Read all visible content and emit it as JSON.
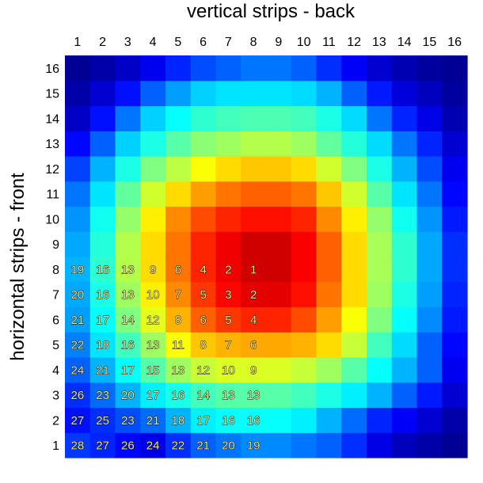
{
  "chart_data": {
    "type": "heatmap",
    "title": "",
    "xlabel": "vertical strips - back",
    "ylabel": "horizontal strips - front",
    "x_categories": [
      "1",
      "2",
      "3",
      "4",
      "5",
      "6",
      "7",
      "8",
      "9",
      "10",
      "11",
      "12",
      "13",
      "14",
      "15",
      "16"
    ],
    "y_categories": [
      "1",
      "2",
      "3",
      "4",
      "5",
      "6",
      "7",
      "8",
      "9",
      "10",
      "11",
      "12",
      "13",
      "14",
      "15",
      "16"
    ],
    "colormap": "jet",
    "z_range": [
      0,
      1
    ],
    "z_rows_bottom_to_top": [
      [
        0.18,
        0.16,
        0.13,
        0.1,
        0.17,
        0.22,
        0.24,
        0.26,
        0.26,
        0.24,
        0.22,
        0.17,
        0.1,
        0.06,
        0.04,
        0.02
      ],
      [
        0.14,
        0.17,
        0.2,
        0.23,
        0.3,
        0.36,
        0.38,
        0.38,
        0.38,
        0.36,
        0.3,
        0.23,
        0.16,
        0.12,
        0.08,
        0.04
      ],
      [
        0.17,
        0.23,
        0.3,
        0.36,
        0.4,
        0.44,
        0.46,
        0.46,
        0.46,
        0.44,
        0.4,
        0.36,
        0.3,
        0.22,
        0.15,
        0.08
      ],
      [
        0.22,
        0.3,
        0.38,
        0.46,
        0.53,
        0.57,
        0.59,
        0.59,
        0.59,
        0.57,
        0.53,
        0.46,
        0.38,
        0.3,
        0.22,
        0.11
      ],
      [
        0.25,
        0.35,
        0.44,
        0.53,
        0.62,
        0.68,
        0.7,
        0.71,
        0.71,
        0.7,
        0.66,
        0.57,
        0.44,
        0.34,
        0.22,
        0.13
      ],
      [
        0.28,
        0.38,
        0.5,
        0.6,
        0.7,
        0.78,
        0.82,
        0.84,
        0.84,
        0.8,
        0.72,
        0.62,
        0.5,
        0.38,
        0.26,
        0.15
      ],
      [
        0.29,
        0.4,
        0.53,
        0.64,
        0.74,
        0.82,
        0.87,
        0.9,
        0.9,
        0.86,
        0.76,
        0.66,
        0.53,
        0.4,
        0.28,
        0.16
      ],
      [
        0.3,
        0.42,
        0.55,
        0.66,
        0.76,
        0.84,
        0.89,
        0.92,
        0.92,
        0.88,
        0.78,
        0.66,
        0.54,
        0.42,
        0.29,
        0.17
      ],
      [
        0.29,
        0.41,
        0.55,
        0.66,
        0.76,
        0.84,
        0.89,
        0.92,
        0.92,
        0.88,
        0.78,
        0.66,
        0.54,
        0.42,
        0.29,
        0.17
      ],
      [
        0.27,
        0.39,
        0.52,
        0.64,
        0.74,
        0.8,
        0.84,
        0.86,
        0.86,
        0.84,
        0.74,
        0.64,
        0.52,
        0.39,
        0.27,
        0.15
      ],
      [
        0.24,
        0.35,
        0.47,
        0.58,
        0.66,
        0.72,
        0.76,
        0.78,
        0.78,
        0.76,
        0.68,
        0.58,
        0.46,
        0.35,
        0.24,
        0.13
      ],
      [
        0.19,
        0.3,
        0.4,
        0.5,
        0.56,
        0.62,
        0.66,
        0.68,
        0.68,
        0.66,
        0.58,
        0.5,
        0.4,
        0.3,
        0.2,
        0.11
      ],
      [
        0.13,
        0.22,
        0.33,
        0.4,
        0.46,
        0.51,
        0.53,
        0.55,
        0.55,
        0.53,
        0.47,
        0.41,
        0.34,
        0.24,
        0.16,
        0.08
      ],
      [
        0.07,
        0.14,
        0.24,
        0.33,
        0.38,
        0.42,
        0.44,
        0.45,
        0.45,
        0.44,
        0.4,
        0.34,
        0.24,
        0.16,
        0.1,
        0.05
      ],
      [
        0.04,
        0.08,
        0.14,
        0.22,
        0.28,
        0.33,
        0.35,
        0.35,
        0.35,
        0.34,
        0.3,
        0.22,
        0.15,
        0.09,
        0.06,
        0.03
      ],
      [
        0.02,
        0.04,
        0.07,
        0.11,
        0.16,
        0.2,
        0.22,
        0.24,
        0.24,
        0.22,
        0.17,
        0.12,
        0.08,
        0.05,
        0.03,
        0.02
      ]
    ],
    "cell_labels": [
      {
        "x": 1,
        "y": 1,
        "text": "28",
        "color": "#f0e68c"
      },
      {
        "x": 2,
        "y": 1,
        "text": "27",
        "color": "#f0e68c"
      },
      {
        "x": 3,
        "y": 1,
        "text": "26",
        "color": "#f0e68c"
      },
      {
        "x": 4,
        "y": 1,
        "text": "24",
        "color": "#f0e68c"
      },
      {
        "x": 5,
        "y": 1,
        "text": "22",
        "color": "#f0e68c"
      },
      {
        "x": 6,
        "y": 1,
        "text": "21",
        "color": "#f0e68c"
      },
      {
        "x": 7,
        "y": 1,
        "text": "20",
        "color": "#f0e68c"
      },
      {
        "x": 8,
        "y": 1,
        "text": "19",
        "color": "#f0e68c"
      },
      {
        "x": 1,
        "y": 2,
        "text": "27",
        "color": "#f0e68c"
      },
      {
        "x": 2,
        "y": 2,
        "text": "25",
        "color": "#f0e68c"
      },
      {
        "x": 3,
        "y": 2,
        "text": "23",
        "color": "#f0e68c"
      },
      {
        "x": 4,
        "y": 2,
        "text": "21",
        "color": "#f0e68c"
      },
      {
        "x": 5,
        "y": 2,
        "text": "18",
        "color": "#f0e68c"
      },
      {
        "x": 6,
        "y": 2,
        "text": "17",
        "color": "#f0e68c"
      },
      {
        "x": 7,
        "y": 2,
        "text": "16",
        "color": "#f0e68c"
      },
      {
        "x": 8,
        "y": 2,
        "text": "16",
        "color": "#f0e68c"
      },
      {
        "x": 1,
        "y": 3,
        "text": "26",
        "color": "#f0e68c"
      },
      {
        "x": 2,
        "y": 3,
        "text": "23",
        "color": "#f0e68c"
      },
      {
        "x": 3,
        "y": 3,
        "text": "20",
        "color": "#f0e68c"
      },
      {
        "x": 4,
        "y": 3,
        "text": "17",
        "color": "#f0e68c"
      },
      {
        "x": 5,
        "y": 3,
        "text": "16",
        "color": "#f0e68c"
      },
      {
        "x": 6,
        "y": 3,
        "text": "14",
        "color": "#f0e68c"
      },
      {
        "x": 7,
        "y": 3,
        "text": "13",
        "color": "#f0e68c"
      },
      {
        "x": 8,
        "y": 3,
        "text": "13",
        "color": "#f0e68c"
      },
      {
        "x": 1,
        "y": 4,
        "text": "24",
        "color": "#f0e68c"
      },
      {
        "x": 2,
        "y": 4,
        "text": "21",
        "color": "#f0e68c"
      },
      {
        "x": 3,
        "y": 4,
        "text": "17",
        "color": "#f0e68c"
      },
      {
        "x": 4,
        "y": 4,
        "text": "15",
        "color": "#f0e68c"
      },
      {
        "x": 5,
        "y": 4,
        "text": "13",
        "color": "#f0e68c"
      },
      {
        "x": 6,
        "y": 4,
        "text": "12",
        "color": "#f0e68c"
      },
      {
        "x": 7,
        "y": 4,
        "text": "10",
        "color": "#f0e68c"
      },
      {
        "x": 8,
        "y": 4,
        "text": "9",
        "color": "#f0e68c"
      },
      {
        "x": 1,
        "y": 5,
        "text": "22",
        "color": "#f0e68c"
      },
      {
        "x": 2,
        "y": 5,
        "text": "18",
        "color": "#f0e68c"
      },
      {
        "x": 3,
        "y": 5,
        "text": "16",
        "color": "#f0e68c"
      },
      {
        "x": 4,
        "y": 5,
        "text": "13",
        "color": "#f0e68c"
      },
      {
        "x": 5,
        "y": 5,
        "text": "11",
        "color": "#f0e68c"
      },
      {
        "x": 6,
        "y": 5,
        "text": "8",
        "color": "#f0e68c"
      },
      {
        "x": 7,
        "y": 5,
        "text": "7",
        "color": "#f0e68c"
      },
      {
        "x": 8,
        "y": 5,
        "text": "6",
        "color": "#f0e68c"
      },
      {
        "x": 1,
        "y": 6,
        "text": "21",
        "color": "#f0e68c"
      },
      {
        "x": 2,
        "y": 6,
        "text": "17",
        "color": "#f0e68c"
      },
      {
        "x": 3,
        "y": 6,
        "text": "14",
        "color": "#f0e68c"
      },
      {
        "x": 4,
        "y": 6,
        "text": "12",
        "color": "#f0e68c"
      },
      {
        "x": 5,
        "y": 6,
        "text": "8",
        "color": "#f0e68c"
      },
      {
        "x": 6,
        "y": 6,
        "text": "6",
        "color": "#f0e68c"
      },
      {
        "x": 7,
        "y": 6,
        "text": "5",
        "color": "#f0e68c"
      },
      {
        "x": 8,
        "y": 6,
        "text": "4",
        "color": "#f0e68c"
      },
      {
        "x": 1,
        "y": 7,
        "text": "20",
        "color": "#f0e68c"
      },
      {
        "x": 2,
        "y": 7,
        "text": "16",
        "color": "#f0e68c"
      },
      {
        "x": 3,
        "y": 7,
        "text": "13",
        "color": "#f0e68c"
      },
      {
        "x": 4,
        "y": 7,
        "text": "10",
        "color": "#f0e68c"
      },
      {
        "x": 5,
        "y": 7,
        "text": "7",
        "color": "#f0e68c"
      },
      {
        "x": 6,
        "y": 7,
        "text": "5",
        "color": "#f0e68c"
      },
      {
        "x": 7,
        "y": 7,
        "text": "3",
        "color": "#f0e68c"
      },
      {
        "x": 8,
        "y": 7,
        "text": "2",
        "color": "#f0e68c"
      },
      {
        "x": 1,
        "y": 8,
        "text": "19",
        "color": "#f0e68c"
      },
      {
        "x": 2,
        "y": 8,
        "text": "16",
        "color": "#f0e68c"
      },
      {
        "x": 3,
        "y": 8,
        "text": "13",
        "color": "#f0e68c"
      },
      {
        "x": 4,
        "y": 8,
        "text": "9",
        "color": "#f0e68c"
      },
      {
        "x": 5,
        "y": 8,
        "text": "6",
        "color": "#f0e68c"
      },
      {
        "x": 6,
        "y": 8,
        "text": "4",
        "color": "#f0e68c"
      },
      {
        "x": 7,
        "y": 8,
        "text": "2",
        "color": "#f0e68c"
      },
      {
        "x": 8,
        "y": 8,
        "text": "1",
        "color": "#f0e68c"
      }
    ],
    "grid": false,
    "legend": "none"
  }
}
